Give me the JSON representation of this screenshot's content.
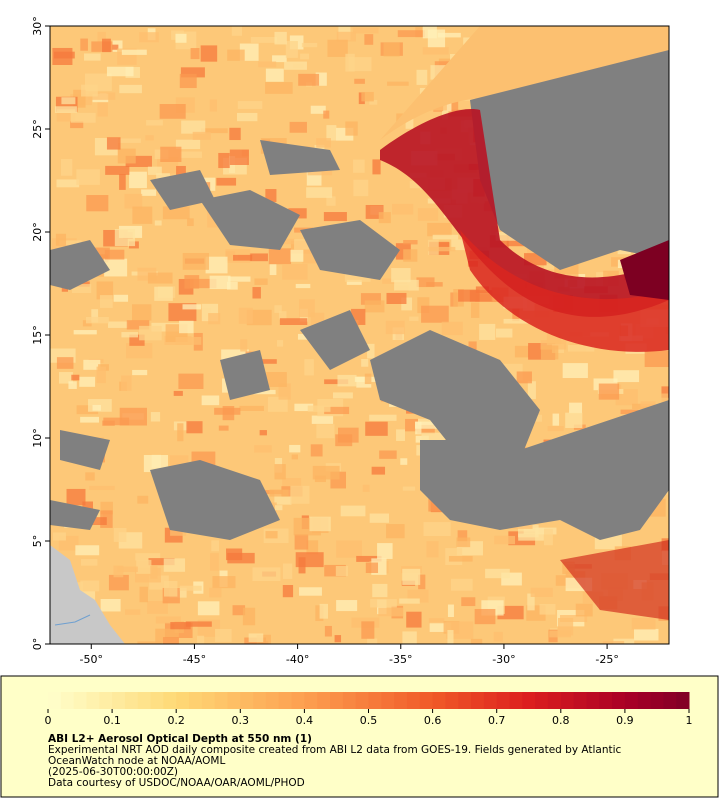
{
  "map": {
    "xlim": [
      -52,
      -22
    ],
    "ylim": [
      0,
      30
    ],
    "xticks": [
      {
        "value": -50,
        "label": "-50°"
      },
      {
        "value": -45,
        "label": "-45°"
      },
      {
        "value": -40,
        "label": "-40°"
      },
      {
        "value": -35,
        "label": "-35°"
      },
      {
        "value": -30,
        "label": "-30°"
      },
      {
        "value": -25,
        "label": "-25°"
      }
    ],
    "yticks": [
      {
        "value": 0,
        "label": "0°"
      },
      {
        "value": 5,
        "label": "5°"
      },
      {
        "value": 10,
        "label": "10°"
      },
      {
        "value": 15,
        "label": "15°"
      },
      {
        "value": 20,
        "label": "20°"
      },
      {
        "value": 25,
        "label": "25°"
      },
      {
        "value": 30,
        "label": "30°"
      }
    ]
  },
  "colorbar": {
    "lim": [
      0,
      1
    ],
    "ticks": [
      0,
      0.1,
      0.2,
      0.3,
      0.4,
      0.5,
      0.6,
      0.7,
      0.8,
      0.9,
      1
    ]
  },
  "caption": {
    "title": "ABI L2+ Aerosol Optical Depth at 550 nm (1)",
    "lines": [
      "Experimental NRT AOD daily composite created from ABI L2 data from GOES-19. Fields generated by Atlantic",
      "OceanWatch node at NOAA/AOML",
      "(2025-06-30T00:00:00Z)",
      "Data courtesy of USDOC/NOAA/OAR/AOML/PHOD"
    ]
  }
}
